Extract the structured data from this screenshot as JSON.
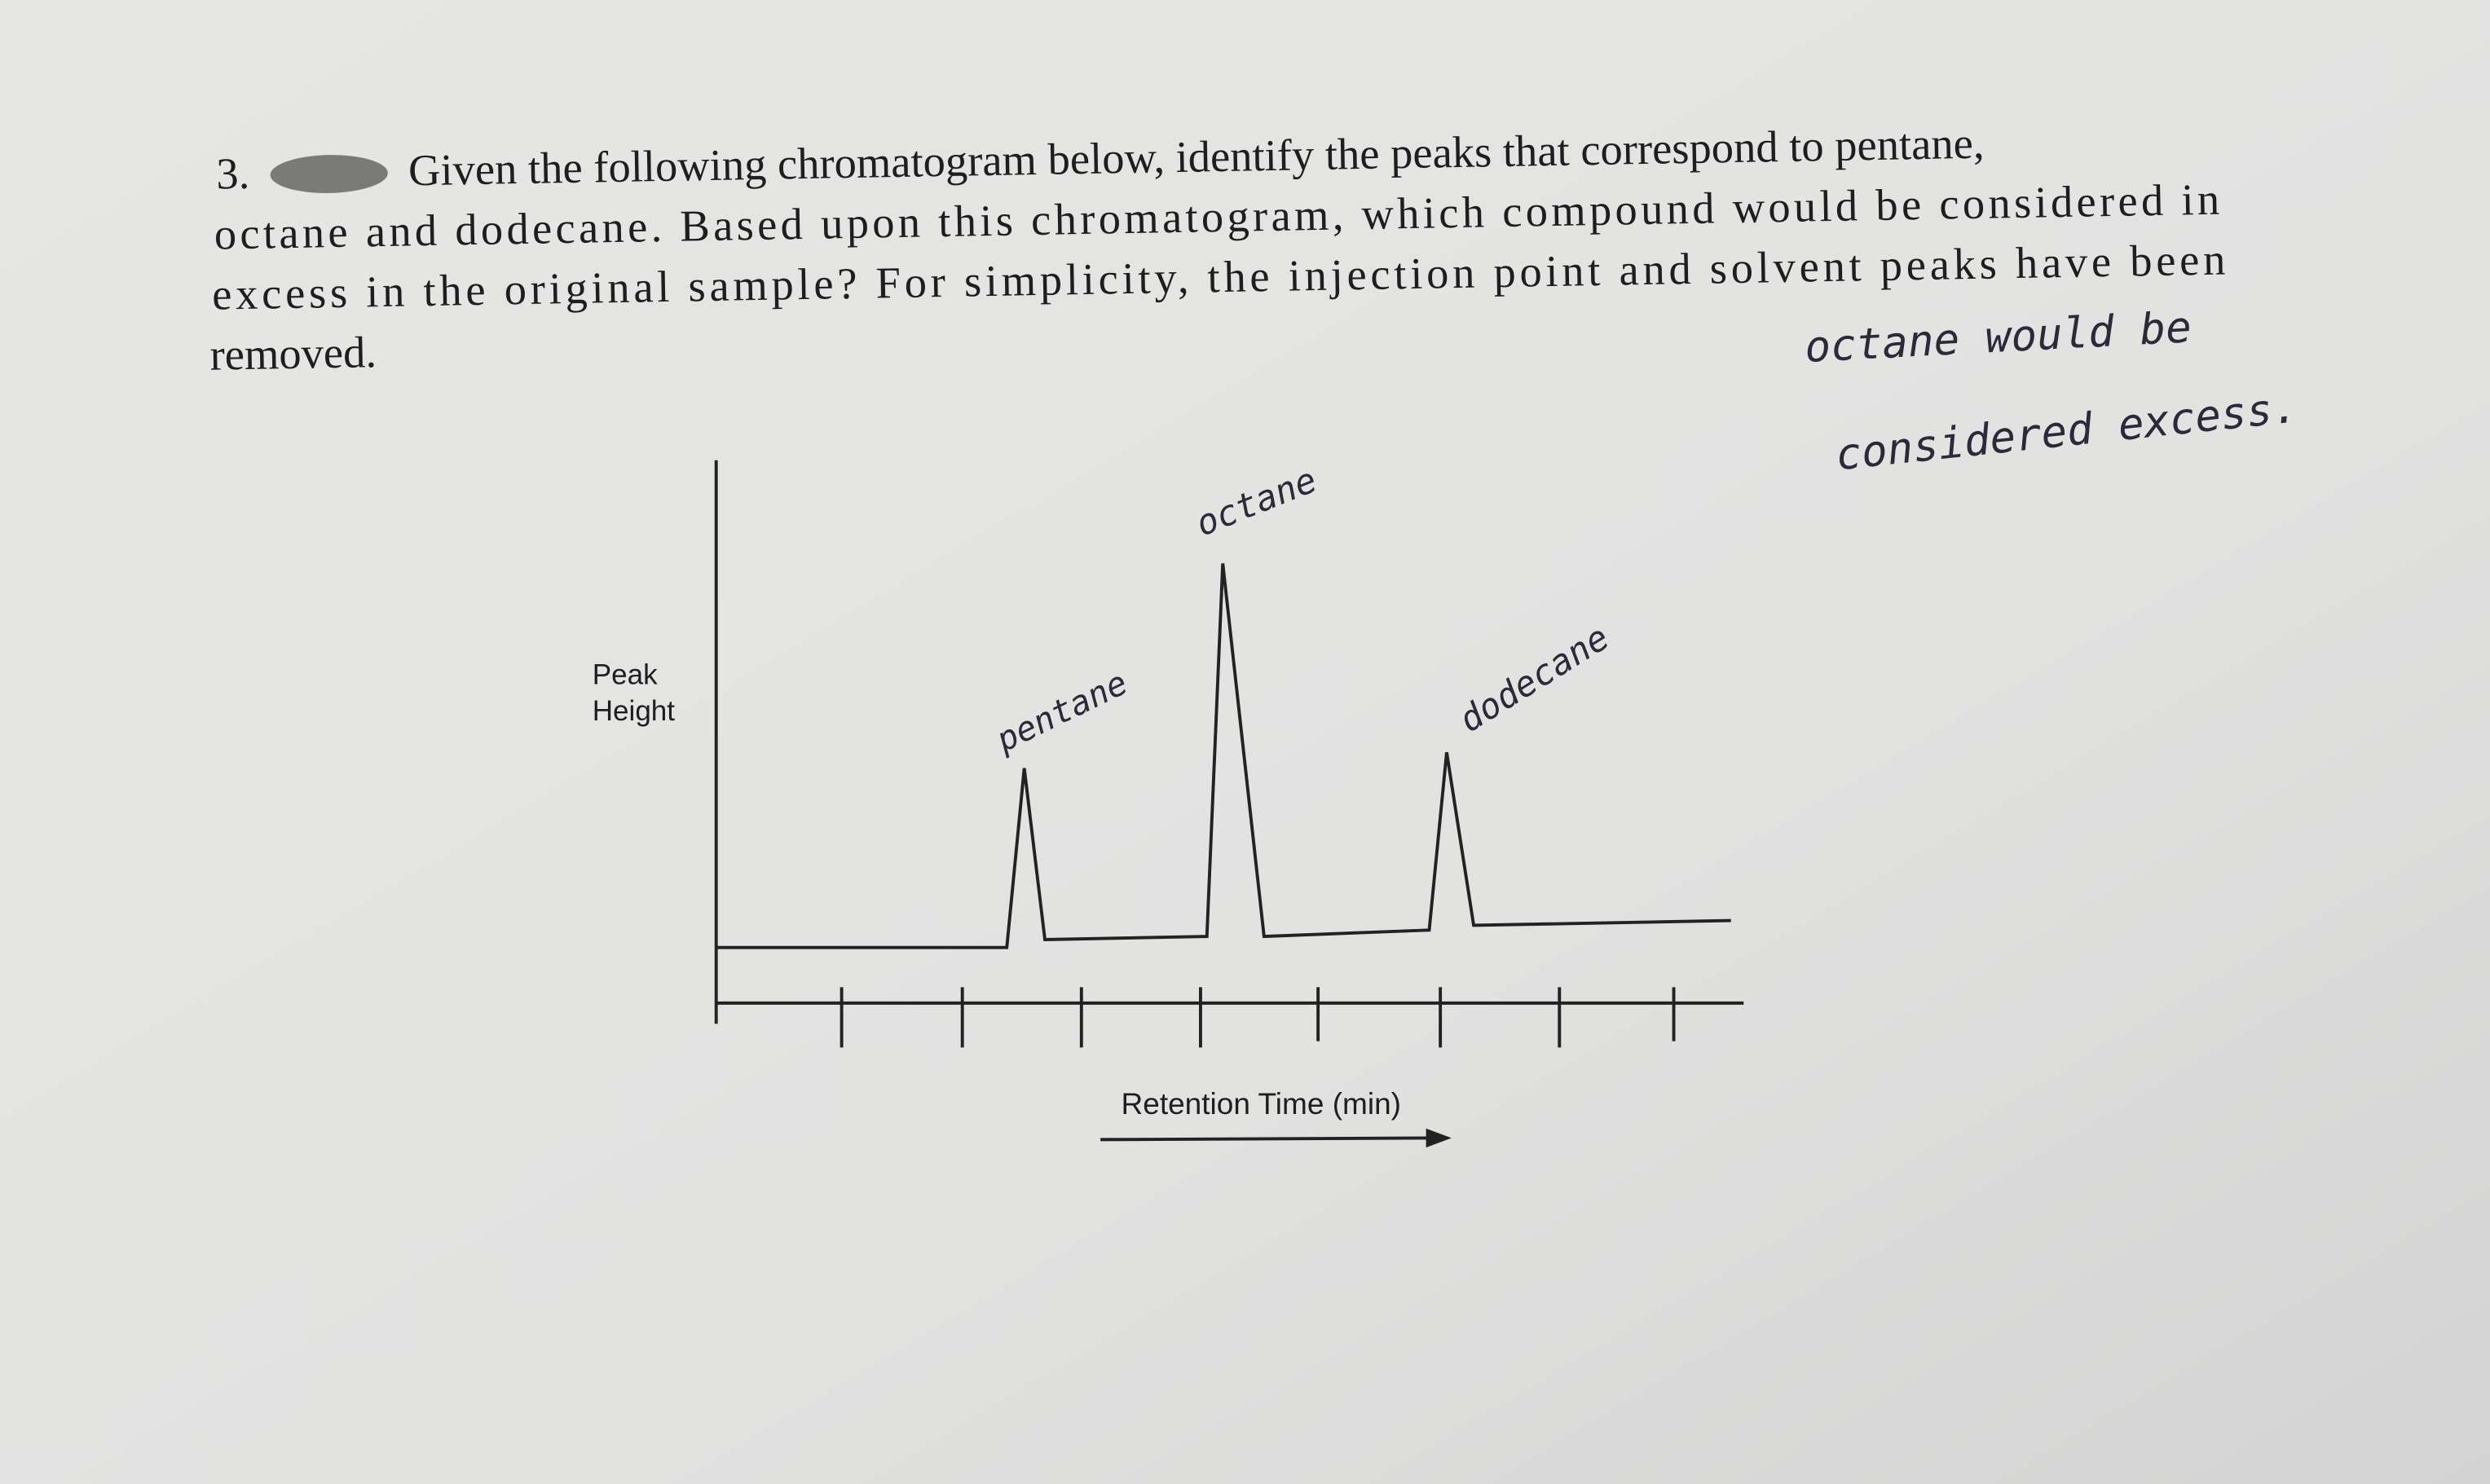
{
  "question": {
    "number": "3.",
    "lines": [
      "Given the following chromatogram below, identify the peaks that correspond to pentane,",
      "octane and dodecane. Based upon this chromatogram, which compound would be considered in",
      "excess in the original sample? For simplicity, the injection point and solvent peaks have been",
      "removed."
    ]
  },
  "diagram": {
    "y_label": [
      "Peak",
      "Height"
    ],
    "x_label": "Retention Time (min)"
  },
  "annotations": {
    "pentane": "pentane",
    "octane": "octane",
    "dodecane": "dodecane",
    "answer": [
      "octane would be",
      "considered excess."
    ]
  }
}
